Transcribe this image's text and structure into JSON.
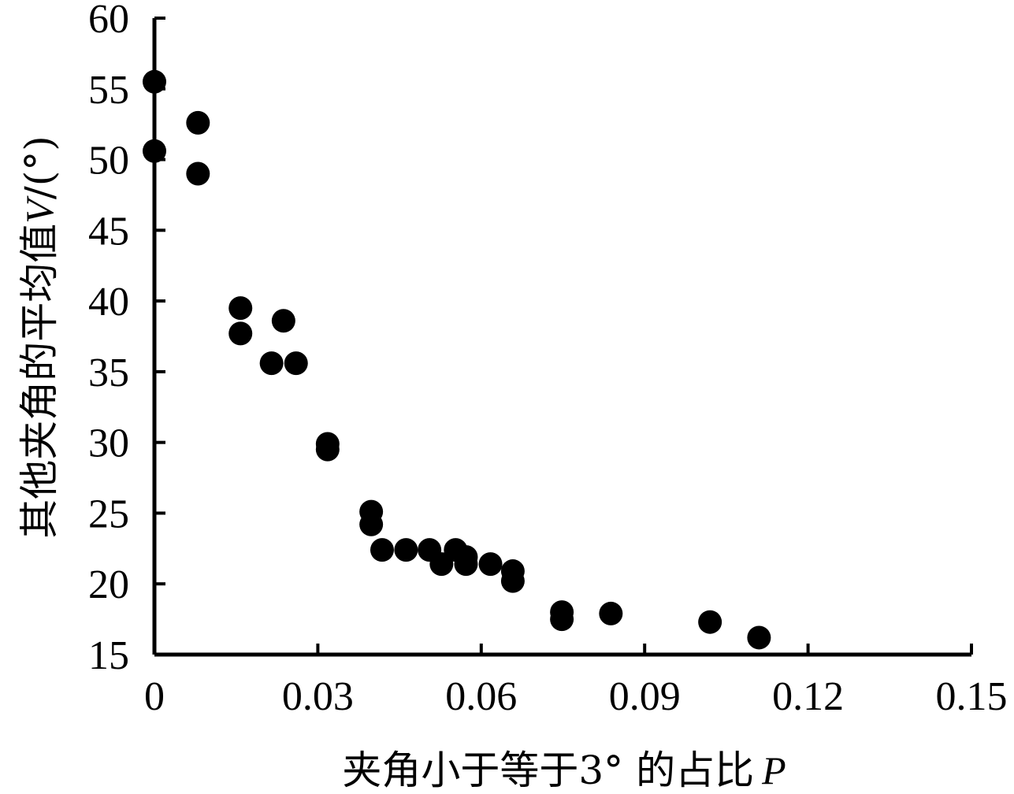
{
  "chart_data": {
    "type": "scatter",
    "xlabel": "夹角小于等于3° 的占比",
    "xlabel_var": "P",
    "ylabel": "其他夹角的平均值",
    "ylabel_var": "V",
    "ylabel_unit": "/(°)",
    "xlim": [
      0,
      0.15
    ],
    "ylim": [
      15,
      60
    ],
    "xticks": [
      0,
      0.03,
      0.06,
      0.09,
      0.12,
      0.15
    ],
    "xtick_labels": [
      "0",
      "0.03",
      "0.06",
      "0.09",
      "0.12",
      "0.15"
    ],
    "yticks": [
      15,
      20,
      25,
      30,
      35,
      40,
      45,
      50,
      55,
      60
    ],
    "ytick_labels": [
      "15",
      "20",
      "25",
      "30",
      "35",
      "40",
      "45",
      "50",
      "55",
      "60"
    ],
    "grid": false,
    "legend": false,
    "marker_color": "#000000",
    "points": [
      {
        "x": 0.0,
        "y": 55.5
      },
      {
        "x": 0.0,
        "y": 50.6
      },
      {
        "x": 0.008,
        "y": 52.6
      },
      {
        "x": 0.008,
        "y": 49.0
      },
      {
        "x": 0.0158,
        "y": 39.5
      },
      {
        "x": 0.0158,
        "y": 37.7
      },
      {
        "x": 0.0237,
        "y": 38.6
      },
      {
        "x": 0.0215,
        "y": 35.6
      },
      {
        "x": 0.026,
        "y": 35.6
      },
      {
        "x": 0.0318,
        "y": 29.9
      },
      {
        "x": 0.0318,
        "y": 29.5
      },
      {
        "x": 0.0398,
        "y": 25.1
      },
      {
        "x": 0.0398,
        "y": 24.2
      },
      {
        "x": 0.0418,
        "y": 22.4
      },
      {
        "x": 0.0462,
        "y": 22.4
      },
      {
        "x": 0.0505,
        "y": 22.4
      },
      {
        "x": 0.0527,
        "y": 21.4
      },
      {
        "x": 0.0553,
        "y": 22.4
      },
      {
        "x": 0.0572,
        "y": 21.9
      },
      {
        "x": 0.0572,
        "y": 21.4
      },
      {
        "x": 0.0617,
        "y": 21.4
      },
      {
        "x": 0.0658,
        "y": 20.9
      },
      {
        "x": 0.0658,
        "y": 20.2
      },
      {
        "x": 0.0748,
        "y": 18.0
      },
      {
        "x": 0.0748,
        "y": 17.5
      },
      {
        "x": 0.0838,
        "y": 17.9
      },
      {
        "x": 0.102,
        "y": 17.3
      },
      {
        "x": 0.111,
        "y": 16.2
      }
    ]
  }
}
